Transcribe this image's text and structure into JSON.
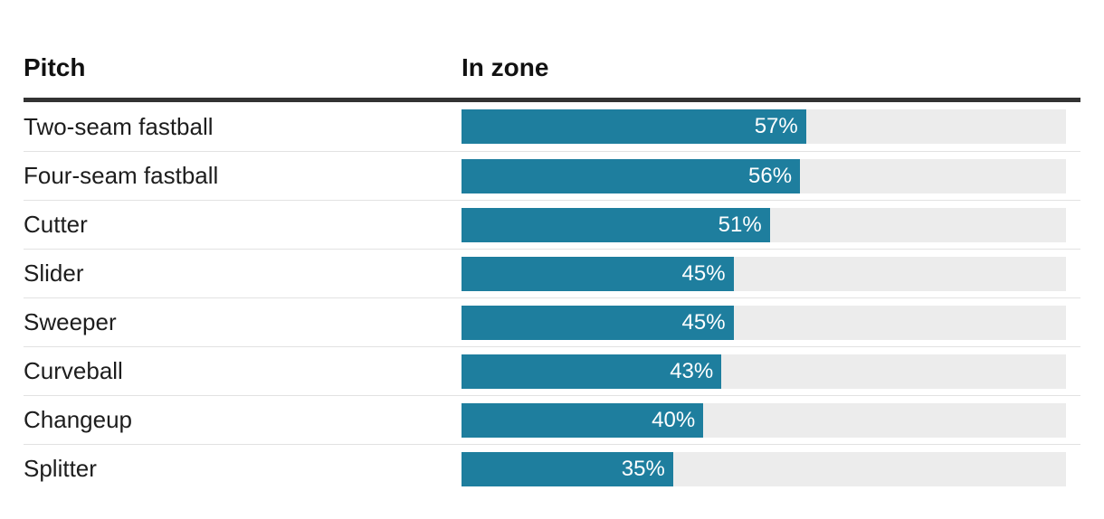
{
  "chart_data": {
    "type": "bar",
    "orientation": "horizontal",
    "title": "",
    "columns": [
      "Pitch",
      "In zone"
    ],
    "categories": [
      "Two-seam fastball",
      "Four-seam fastball",
      "Cutter",
      "Slider",
      "Sweeper",
      "Curveball",
      "Changeup",
      "Splitter"
    ],
    "values": [
      57,
      56,
      51,
      45,
      45,
      43,
      40,
      35
    ],
    "value_labels": [
      "57%",
      "56%",
      "51%",
      "45%",
      "45%",
      "43%",
      "40%",
      "35%"
    ],
    "value_format": "percent",
    "xlim": [
      0,
      100
    ],
    "grid": false,
    "legend": false,
    "colors": {
      "bar_fill": "#1e7e9e",
      "bar_track": "#ececec",
      "header_rule": "#333333",
      "row_divider": "#e2e2e2",
      "heading_text": "#111111",
      "label_text": "#1d1d1d",
      "value_text": "#ffffff",
      "background": "#ffffff"
    }
  }
}
